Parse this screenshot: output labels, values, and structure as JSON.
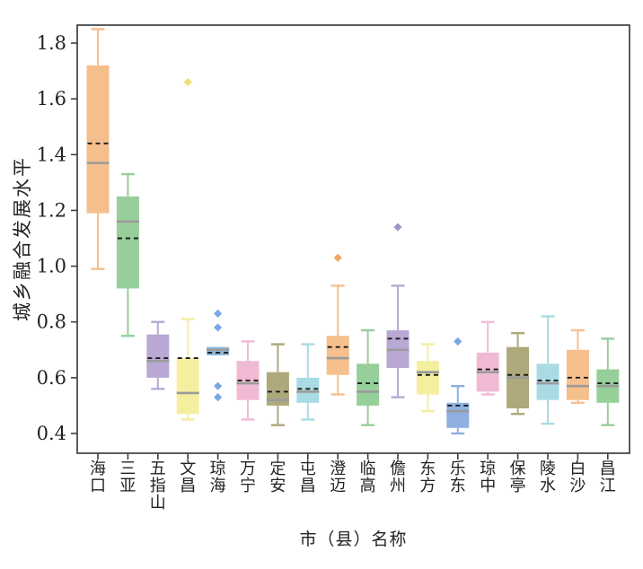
{
  "chart_data": {
    "type": "boxplot",
    "title": "",
    "xlabel": "市（县）名称",
    "ylabel": "城乡融合发展水平",
    "ylim": [
      0.33,
      1.88
    ],
    "yticks": [
      "1.8",
      "1.6",
      "1.4",
      "1.2",
      "1.0",
      "0.8",
      "0.6",
      "0.4"
    ],
    "ytick_values": [
      1.8,
      1.6,
      1.4,
      1.2,
      1.0,
      0.8,
      0.6,
      0.4
    ],
    "grid": "off",
    "legend": "none",
    "median_line": {
      "style": "solid",
      "color": "#9b9b9b"
    },
    "mean_line": {
      "style": "dashed",
      "color": "#1a1a1a"
    },
    "axis_color": "#3f3f3f",
    "text_color": "#222222",
    "series": [
      {
        "name": "海口",
        "color": "#F5BE8D",
        "flier_color": "#F0A867",
        "whislo": 0.99,
        "q1": 1.19,
        "med": 1.37,
        "mean": 1.44,
        "q3": 1.72,
        "whishi": 1.85,
        "fliers": []
      },
      {
        "name": "三亚",
        "color": "#96CF99",
        "flier_color": "#6FBE74",
        "whislo": 0.75,
        "q1": 0.92,
        "med": 1.16,
        "mean": 1.1,
        "q3": 1.25,
        "whishi": 1.33,
        "fliers": []
      },
      {
        "name": "五指山",
        "color": "#B9A8D4",
        "flier_color": "#A493C8",
        "whislo": 0.56,
        "q1": 0.6,
        "med": 0.66,
        "mean": 0.67,
        "q3": 0.755,
        "whishi": 0.8,
        "fliers": []
      },
      {
        "name": "文昌",
        "color": "#F4EE9F",
        "flier_color": "#EDE178",
        "whislo": 0.45,
        "q1": 0.47,
        "med": 0.545,
        "mean": 0.67,
        "q3": 0.67,
        "whishi": 0.81,
        "fliers": [
          1.66
        ]
      },
      {
        "name": "琼海",
        "color": "#8FB7DC",
        "flier_color": "#78A8E8",
        "whislo": 0.68,
        "q1": 0.68,
        "med": 0.7,
        "mean": 0.69,
        "q3": 0.71,
        "whishi": 0.71,
        "fliers": [
          0.83,
          0.78,
          0.57,
          0.53
        ]
      },
      {
        "name": "万宁",
        "color": "#F0BAD5",
        "flier_color": "#E898C2",
        "whislo": 0.45,
        "q1": 0.52,
        "med": 0.58,
        "mean": 0.59,
        "q3": 0.66,
        "whishi": 0.73,
        "fliers": []
      },
      {
        "name": "定安",
        "color": "#ADA97A",
        "flier_color": "#989455",
        "whislo": 0.43,
        "q1": 0.5,
        "med": 0.52,
        "mean": 0.55,
        "q3": 0.62,
        "whishi": 0.72,
        "fliers": []
      },
      {
        "name": "屯昌",
        "color": "#A9DBE4",
        "flier_color": "#7FC8D6",
        "whislo": 0.45,
        "q1": 0.51,
        "med": 0.55,
        "mean": 0.56,
        "q3": 0.6,
        "whishi": 0.72,
        "fliers": []
      },
      {
        "name": "澄迈",
        "color": "#F5C08E",
        "flier_color": "#F0A867",
        "whislo": 0.54,
        "q1": 0.61,
        "med": 0.67,
        "mean": 0.71,
        "q3": 0.75,
        "whishi": 0.93,
        "fliers": [
          1.03
        ]
      },
      {
        "name": "临高",
        "color": "#96CF99",
        "flier_color": "#6FBE74",
        "whislo": 0.43,
        "q1": 0.5,
        "med": 0.55,
        "mean": 0.58,
        "q3": 0.65,
        "whishi": 0.77,
        "fliers": []
      },
      {
        "name": "儋州",
        "color": "#B9A8D4",
        "flier_color": "#A493C8",
        "whislo": 0.53,
        "q1": 0.635,
        "med": 0.7,
        "mean": 0.74,
        "q3": 0.77,
        "whishi": 0.93,
        "fliers": [
          1.14
        ]
      },
      {
        "name": "东方",
        "color": "#F4EE9F",
        "flier_color": "#EDE178",
        "whislo": 0.48,
        "q1": 0.54,
        "med": 0.62,
        "mean": 0.61,
        "q3": 0.66,
        "whishi": 0.72,
        "fliers": []
      },
      {
        "name": "乐东",
        "color": "#8FB0E0",
        "flier_color": "#78A8E8",
        "whislo": 0.4,
        "q1": 0.42,
        "med": 0.48,
        "mean": 0.5,
        "q3": 0.51,
        "whishi": 0.57,
        "fliers": [
          0.73
        ]
      },
      {
        "name": "琼中",
        "color": "#F0BAD5",
        "flier_color": "#E898C2",
        "whislo": 0.54,
        "q1": 0.55,
        "med": 0.62,
        "mean": 0.63,
        "q3": 0.69,
        "whishi": 0.8,
        "fliers": []
      },
      {
        "name": "保亭",
        "color": "#ADA97A",
        "flier_color": "#989455",
        "whislo": 0.47,
        "q1": 0.49,
        "med": 0.6,
        "mean": 0.61,
        "q3": 0.71,
        "whishi": 0.76,
        "fliers": []
      },
      {
        "name": "陵水",
        "color": "#A9DBE4",
        "flier_color": "#7FC8D6",
        "whislo": 0.435,
        "q1": 0.52,
        "med": 0.58,
        "mean": 0.59,
        "q3": 0.65,
        "whishi": 0.82,
        "fliers": []
      },
      {
        "name": "白沙",
        "color": "#F5C08E",
        "flier_color": "#F0A867",
        "whislo": 0.51,
        "q1": 0.52,
        "med": 0.57,
        "mean": 0.6,
        "q3": 0.7,
        "whishi": 0.77,
        "fliers": []
      },
      {
        "name": "昌江",
        "color": "#96CF99",
        "flier_color": "#6FBE74",
        "whislo": 0.43,
        "q1": 0.51,
        "med": 0.57,
        "mean": 0.58,
        "q3": 0.63,
        "whishi": 0.74,
        "fliers": []
      }
    ]
  }
}
